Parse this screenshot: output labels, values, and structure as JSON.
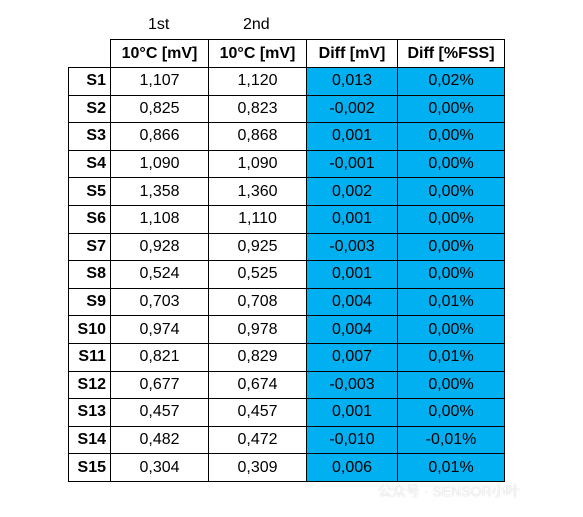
{
  "pre_header": [
    "1st",
    "2nd"
  ],
  "columns": [
    "",
    "10°C [mV]",
    "10°C [mV]",
    "Diff [mV]",
    "Diff [%FSS]"
  ],
  "rows": [
    {
      "label": "S1",
      "first": "1,107",
      "second": "1,120",
      "diff_mv": "0,013",
      "diff_fss": "0,02%"
    },
    {
      "label": "S2",
      "first": "0,825",
      "second": "0,823",
      "diff_mv": "-0,002",
      "diff_fss": "0,00%"
    },
    {
      "label": "S3",
      "first": "0,866",
      "second": "0,868",
      "diff_mv": "0,001",
      "diff_fss": "0,00%"
    },
    {
      "label": "S4",
      "first": "1,090",
      "second": "1,090",
      "diff_mv": "-0,001",
      "diff_fss": "0,00%"
    },
    {
      "label": "S5",
      "first": "1,358",
      "second": "1,360",
      "diff_mv": "0,002",
      "diff_fss": "0,00%"
    },
    {
      "label": "S6",
      "first": "1,108",
      "second": "1,110",
      "diff_mv": "0,001",
      "diff_fss": "0,00%"
    },
    {
      "label": "S7",
      "first": "0,928",
      "second": "0,925",
      "diff_mv": "-0,003",
      "diff_fss": "0,00%"
    },
    {
      "label": "S8",
      "first": "0,524",
      "second": "0,525",
      "diff_mv": "0,001",
      "diff_fss": "0,00%"
    },
    {
      "label": "S9",
      "first": "0,703",
      "second": "0,708",
      "diff_mv": "0,004",
      "diff_fss": "0,01%"
    },
    {
      "label": "S10",
      "first": "0,974",
      "second": "0,978",
      "diff_mv": "0,004",
      "diff_fss": "0,00%"
    },
    {
      "label": "S11",
      "first": "0,821",
      "second": "0,829",
      "diff_mv": "0,007",
      "diff_fss": "0,01%"
    },
    {
      "label": "S12",
      "first": "0,677",
      "second": "0,674",
      "diff_mv": "-0,003",
      "diff_fss": "0,00%"
    },
    {
      "label": "S13",
      "first": "0,457",
      "second": "0,457",
      "diff_mv": "0,001",
      "diff_fss": "0,00%"
    },
    {
      "label": "S14",
      "first": "0,482",
      "second": "0,472",
      "diff_mv": "-0,010",
      "diff_fss": "-0,01%"
    },
    {
      "label": "S15",
      "first": "0,304",
      "second": "0,309",
      "diff_mv": "0,006",
      "diff_fss": "0,01%"
    }
  ],
  "colors": {
    "diff_fill": "#00b0f0",
    "border": "#000000"
  },
  "watermark": "公众号 · SENSOR小叶"
}
